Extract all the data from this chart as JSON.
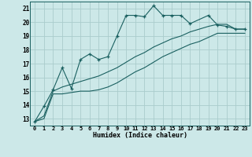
{
  "xlabel": "Humidex (Indice chaleur)",
  "background_color": "#cce8e8",
  "grid_color": "#aacccc",
  "line_color": "#1a6060",
  "xlim": [
    -0.5,
    23.5
  ],
  "ylim": [
    12.5,
    21.5
  ],
  "yticks": [
    13,
    14,
    15,
    16,
    17,
    18,
    19,
    20,
    21
  ],
  "xticks": [
    0,
    1,
    2,
    3,
    4,
    5,
    6,
    7,
    8,
    9,
    10,
    11,
    12,
    13,
    14,
    15,
    16,
    17,
    18,
    19,
    20,
    21,
    22,
    23
  ],
  "series1": {
    "x": [
      0,
      1,
      2,
      3,
      4,
      5,
      6,
      7,
      8,
      9,
      10,
      11,
      12,
      13,
      14,
      15,
      16,
      17,
      19,
      20,
      21,
      22,
      23
    ],
    "y": [
      12.8,
      13.9,
      15.1,
      16.7,
      15.2,
      17.3,
      17.7,
      17.3,
      17.5,
      19.0,
      20.5,
      20.5,
      20.4,
      21.2,
      20.5,
      20.5,
      20.5,
      19.9,
      20.5,
      19.8,
      19.7,
      19.5,
      19.5
    ]
  },
  "series2": {
    "x": [
      0,
      1,
      2,
      3,
      4,
      5,
      6,
      7,
      8,
      9,
      10,
      11,
      12,
      13,
      14,
      15,
      16,
      17,
      18,
      19,
      20,
      21,
      22,
      23
    ],
    "y": [
      12.8,
      13.2,
      15.0,
      15.3,
      15.5,
      15.7,
      15.9,
      16.1,
      16.4,
      16.7,
      17.1,
      17.5,
      17.8,
      18.2,
      18.5,
      18.8,
      19.0,
      19.3,
      19.5,
      19.7,
      19.85,
      19.85,
      19.5,
      19.5
    ]
  },
  "series3": {
    "x": [
      0,
      1,
      2,
      3,
      4,
      5,
      6,
      7,
      8,
      9,
      10,
      11,
      12,
      13,
      14,
      15,
      16,
      17,
      18,
      19,
      20,
      21,
      22,
      23
    ],
    "y": [
      12.8,
      13.0,
      14.8,
      14.8,
      14.9,
      15.0,
      15.0,
      15.1,
      15.3,
      15.6,
      16.0,
      16.4,
      16.7,
      17.1,
      17.5,
      17.8,
      18.1,
      18.4,
      18.6,
      18.9,
      19.2,
      19.2,
      19.2,
      19.2
    ]
  }
}
